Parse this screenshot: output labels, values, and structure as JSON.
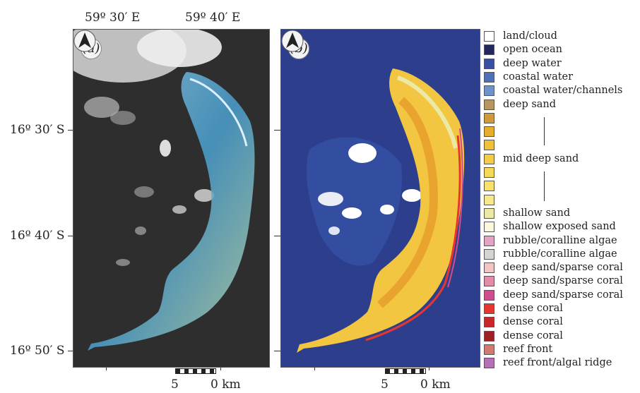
{
  "top_axis": {
    "left": "59º 30′ E",
    "right": "59º 40′ E"
  },
  "left_axis": [
    "16º 30′ S",
    "16º 40′ S",
    "16º 50′ S"
  ],
  "panels": [
    {
      "id": "a",
      "label": "(a)",
      "scalebar": {
        "left": "5",
        "right": "0 km"
      }
    },
    {
      "id": "b",
      "label": "(b)",
      "scalebar": {
        "left": "5",
        "right": "0 km"
      }
    }
  ],
  "legend": [
    {
      "label": "land/cloud",
      "color": "#ffffff"
    },
    {
      "label": "open ocean",
      "color": "#24275c"
    },
    {
      "label": "deep water",
      "color": "#3a4fa0"
    },
    {
      "label": "coastal water",
      "color": "#4f6fb8"
    },
    {
      "label": "coastal water/channels",
      "color": "#6f93c8"
    },
    {
      "label": "deep sand",
      "color": "#b8975e"
    },
    {
      "label": "",
      "color": "#d09a3a"
    },
    {
      "label": "",
      "color": "#e8ac2e"
    },
    {
      "label": "",
      "color": "#f0c03a"
    },
    {
      "label": "mid deep sand",
      "color": "#f2cb48"
    },
    {
      "label": "",
      "color": "#f5d855"
    },
    {
      "label": "",
      "color": "#f8e26a"
    },
    {
      "label": "",
      "color": "#f7e98a"
    },
    {
      "label": "shallow sand",
      "color": "#ece9a6"
    },
    {
      "label": "shallow exposed sand",
      "color": "#fbf6dc"
    },
    {
      "label": "rubble/coralline algae",
      "color": "#e3a3c4"
    },
    {
      "label": "rubble/coralline algae",
      "color": "#d6d4d0"
    },
    {
      "label": "deep sand/sparse coral",
      "color": "#f2c4c2"
    },
    {
      "label": "deep sand/sparse coral",
      "color": "#e28ca8"
    },
    {
      "label": "deep sand/sparse coral",
      "color": "#cc4e8e"
    },
    {
      "label": "dense coral",
      "color": "#e8362f"
    },
    {
      "label": "dense coral",
      "color": "#c8282a"
    },
    {
      "label": "dense coral",
      "color": "#9e2024"
    },
    {
      "label": "reef front",
      "color": "#d07a70"
    },
    {
      "label": "reef front/algal ridge",
      "color": "#b870b4"
    }
  ]
}
